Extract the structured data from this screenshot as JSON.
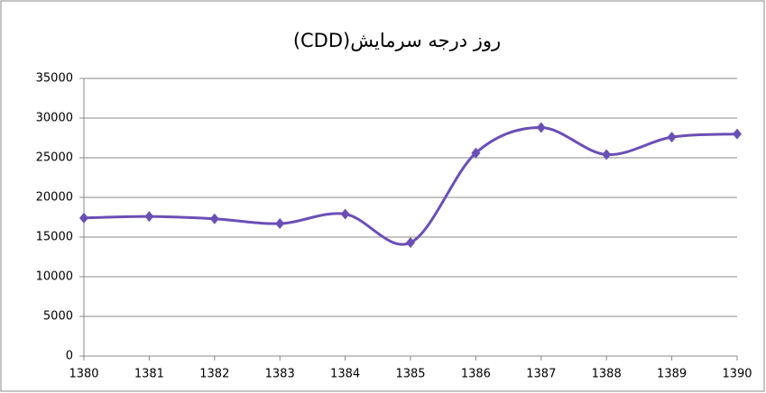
{
  "chart_data": {
    "type": "line",
    "title": "روز درجه سرمایش(CDD)",
    "x": [
      1380,
      1381,
      1382,
      1383,
      1384,
      1385,
      1386,
      1387,
      1388,
      1389,
      1390
    ],
    "series": [
      {
        "color": "#6a4fb6",
        "values": [
          17400,
          17600,
          17300,
          16700,
          17900,
          14300,
          25600,
          28800,
          25400,
          27600,
          28000
        ]
      }
    ],
    "xlim": [
      1380,
      1390
    ],
    "xticks": [
      1380,
      1381,
      1382,
      1383,
      1384,
      1385,
      1386,
      1387,
      1388,
      1389,
      1390
    ],
    "ylim": [
      0,
      35000
    ],
    "yticks": [
      0,
      5000,
      10000,
      15000,
      20000,
      25000,
      30000,
      35000
    ],
    "grid": true,
    "smooth": true
  }
}
